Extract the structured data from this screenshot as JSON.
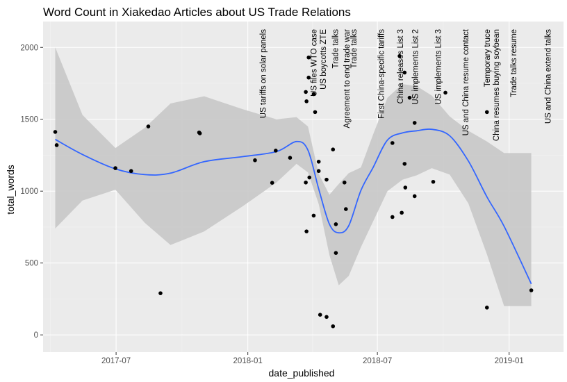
{
  "chart_data": {
    "type": "scatter",
    "title": "Word Count in Xiakedao Articles about US Trade Relations",
    "xlabel": "date_published",
    "ylabel": "total_words",
    "xlim": [
      "2017-03-21",
      "2019-03-18"
    ],
    "ylim": [
      -120,
      2180
    ],
    "x_ticks": [
      {
        "date": "2017-07-01",
        "label": "2017-07"
      },
      {
        "date": "2018-01-01",
        "label": "2018-01"
      },
      {
        "date": "2018-07-01",
        "label": "2018-07"
      },
      {
        "date": "2019-01-01",
        "label": "2019-01"
      }
    ],
    "y_ticks": [
      0,
      500,
      1000,
      1500,
      2000
    ],
    "grid": true,
    "colors": {
      "panel_bg": "#ebebeb",
      "grid_major": "#ffffff",
      "grid_minor": "#f4f4f4",
      "point": "#000000",
      "smooth_line": "#3366ff",
      "ribbon": "#c8c8c8"
    },
    "points": [
      {
        "date": "2017-04-07",
        "value": 1412
      },
      {
        "date": "2017-04-09",
        "value": 1320
      },
      {
        "date": "2017-06-30",
        "value": 1160
      },
      {
        "date": "2017-07-22",
        "value": 1140
      },
      {
        "date": "2017-08-15",
        "value": 1450
      },
      {
        "date": "2017-09-01",
        "value": 290
      },
      {
        "date": "2017-10-25",
        "value": 1408
      },
      {
        "date": "2017-10-26",
        "value": 1402
      },
      {
        "date": "2018-01-11",
        "value": 1215
      },
      {
        "date": "2018-02-04",
        "value": 1058
      },
      {
        "date": "2018-02-09",
        "value": 1282
      },
      {
        "date": "2018-03-01",
        "value": 1232
      },
      {
        "date": "2018-03-23",
        "value": 1060
      },
      {
        "date": "2018-03-23",
        "value": 1690
      },
      {
        "date": "2018-03-24",
        "value": 1625
      },
      {
        "date": "2018-03-24",
        "value": 720
      },
      {
        "date": "2018-03-27",
        "value": 1930
      },
      {
        "date": "2018-03-27",
        "value": 1790
      },
      {
        "date": "2018-03-28",
        "value": 1095
      },
      {
        "date": "2018-04-03",
        "value": 1675
      },
      {
        "date": "2018-04-03",
        "value": 830
      },
      {
        "date": "2018-04-05",
        "value": 1550
      },
      {
        "date": "2018-04-10",
        "value": 1205
      },
      {
        "date": "2018-04-10",
        "value": 1140
      },
      {
        "date": "2018-04-12",
        "value": 140
      },
      {
        "date": "2018-04-21",
        "value": 1080
      },
      {
        "date": "2018-04-21",
        "value": 125
      },
      {
        "date": "2018-04-30",
        "value": 60
      },
      {
        "date": "2018-04-30",
        "value": 1290
      },
      {
        "date": "2018-05-04",
        "value": 770
      },
      {
        "date": "2018-05-04",
        "value": 570
      },
      {
        "date": "2018-05-16",
        "value": 1060
      },
      {
        "date": "2018-05-18",
        "value": 875
      },
      {
        "date": "2018-07-22",
        "value": 1335
      },
      {
        "date": "2018-07-22",
        "value": 820
      },
      {
        "date": "2018-08-01",
        "value": 1940
      },
      {
        "date": "2018-08-04",
        "value": 850
      },
      {
        "date": "2018-08-08",
        "value": 1825
      },
      {
        "date": "2018-08-08",
        "value": 1190
      },
      {
        "date": "2018-08-09",
        "value": 1025
      },
      {
        "date": "2018-08-15",
        "value": 1650
      },
      {
        "date": "2018-08-22",
        "value": 1475
      },
      {
        "date": "2018-08-22",
        "value": 965
      },
      {
        "date": "2018-09-17",
        "value": 1065
      },
      {
        "date": "2018-10-04",
        "value": 1685
      },
      {
        "date": "2018-12-01",
        "value": 1550
      },
      {
        "date": "2018-12-01",
        "value": 190
      },
      {
        "date": "2019-02-01",
        "value": 310
      }
    ],
    "smooth_line": {
      "dates": [
        "2017-04-07",
        "2017-05-15",
        "2017-06-30",
        "2017-08-10",
        "2017-09-15",
        "2017-11-01",
        "2017-12-25",
        "2018-02-10",
        "2018-03-10",
        "2018-03-26",
        "2018-04-10",
        "2018-04-25",
        "2018-05-08",
        "2018-05-22",
        "2018-06-08",
        "2018-06-25",
        "2018-07-15",
        "2018-08-05",
        "2018-08-25",
        "2018-09-15",
        "2018-10-10",
        "2018-11-05",
        "2018-12-01",
        "2018-12-25",
        "2019-02-01"
      ],
      "values": [
        1360,
        1255,
        1155,
        1115,
        1125,
        1205,
        1240,
        1275,
        1345,
        1285,
        1015,
        770,
        710,
        760,
        1005,
        1165,
        1355,
        1405,
        1420,
        1430,
        1385,
        1210,
        960,
        755,
        355
      ]
    },
    "confidence_band": {
      "dates": [
        "2017-04-07",
        "2017-05-15",
        "2017-06-30",
        "2017-08-10",
        "2017-09-15",
        "2017-11-01",
        "2017-12-25",
        "2018-02-10",
        "2018-03-10",
        "2018-03-26",
        "2018-04-10",
        "2018-04-25",
        "2018-05-08",
        "2018-05-22",
        "2018-06-08",
        "2018-06-25",
        "2018-07-15",
        "2018-08-05",
        "2018-08-25",
        "2018-09-15",
        "2018-10-10",
        "2018-11-05",
        "2018-12-01",
        "2018-12-25",
        "2019-02-01"
      ],
      "upper": [
        2000,
        1530,
        1300,
        1440,
        1610,
        1660,
        1570,
        1500,
        1515,
        1450,
        1120,
        975,
        1050,
        1125,
        1165,
        1395,
        1650,
        1745,
        1730,
        1665,
        1520,
        1420,
        1345,
        1265,
        1265
      ],
      "lower": [
        740,
        935,
        1010,
        780,
        625,
        720,
        895,
        1060,
        1190,
        1130,
        910,
        555,
        345,
        410,
        610,
        790,
        1000,
        1080,
        1110,
        1160,
        1115,
        915,
        560,
        200,
        200
      ]
    },
    "events": [
      {
        "date": "2018-01-22",
        "label": "US tariffs on solar panels"
      },
      {
        "date": "2018-04-03",
        "label": "US files WTO case"
      },
      {
        "date": "2018-04-16",
        "label": "US boycotts ZTE"
      },
      {
        "date": "2018-05-03",
        "label": "Trade talks"
      },
      {
        "date": "2018-05-19",
        "label": "Agreement to end trade war"
      },
      {
        "date": "2018-05-29",
        "label": "Trade talks"
      },
      {
        "date": "2018-07-06",
        "label": "First China-specific tariffs"
      },
      {
        "date": "2018-08-02",
        "label": "China releases List 3"
      },
      {
        "date": "2018-08-23",
        "label": "US implements List 2"
      },
      {
        "date": "2018-09-24",
        "label": "US implements List 3"
      },
      {
        "date": "2018-11-01",
        "label": "US and China resume contact"
      },
      {
        "date": "2018-12-01",
        "label": "Temporary truce"
      },
      {
        "date": "2018-12-14",
        "label": "China resumes buying soybean"
      },
      {
        "date": "2019-01-07",
        "label": "Trade talks resume"
      },
      {
        "date": "2019-02-24",
        "label": "US and China extend talks"
      }
    ]
  }
}
